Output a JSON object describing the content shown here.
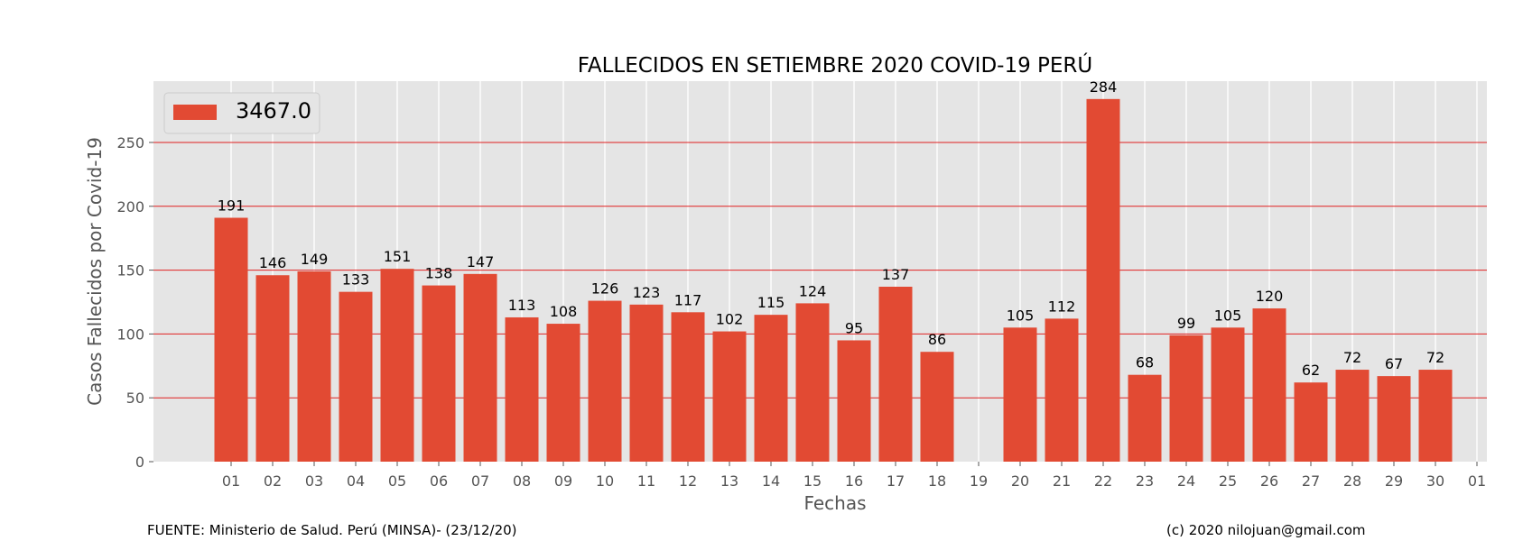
{
  "chart_data": {
    "type": "bar",
    "title": "FALLECIDOS EN SETIEMBRE 2020 COVID-19 PERÚ",
    "xlabel": "Fechas",
    "ylabel": "Casos Fallecidos por Covid-19",
    "ylim": [
      0,
      298
    ],
    "yticks": [
      0,
      50,
      100,
      150,
      200,
      250
    ],
    "categories": [
      "01",
      "02",
      "03",
      "04",
      "05",
      "06",
      "07",
      "08",
      "09",
      "10",
      "11",
      "12",
      "13",
      "14",
      "15",
      "16",
      "17",
      "18",
      "19",
      "20",
      "21",
      "22",
      "23",
      "24",
      "25",
      "26",
      "27",
      "28",
      "29",
      "30",
      "01"
    ],
    "values": [
      191,
      146,
      149,
      133,
      151,
      138,
      147,
      113,
      108,
      126,
      123,
      117,
      102,
      115,
      124,
      95,
      137,
      86,
      null,
      105,
      112,
      284,
      68,
      99,
      105,
      120,
      62,
      72,
      67,
      72,
      null
    ],
    "legend": {
      "entries": [
        "3467.0"
      ],
      "placement": "upper-left"
    },
    "bar_color": "#e24a33",
    "background_color": "#e5e5e5",
    "grid": {
      "x": true,
      "y": true,
      "y_color": "#e02020",
      "x_color": "#ffffff"
    }
  },
  "footer": {
    "source": "FUENTE: Ministerio de Salud. Perú (MINSA)- (23/12/20)",
    "credit": "(c) 2020 nilojuan@gmail.com"
  }
}
